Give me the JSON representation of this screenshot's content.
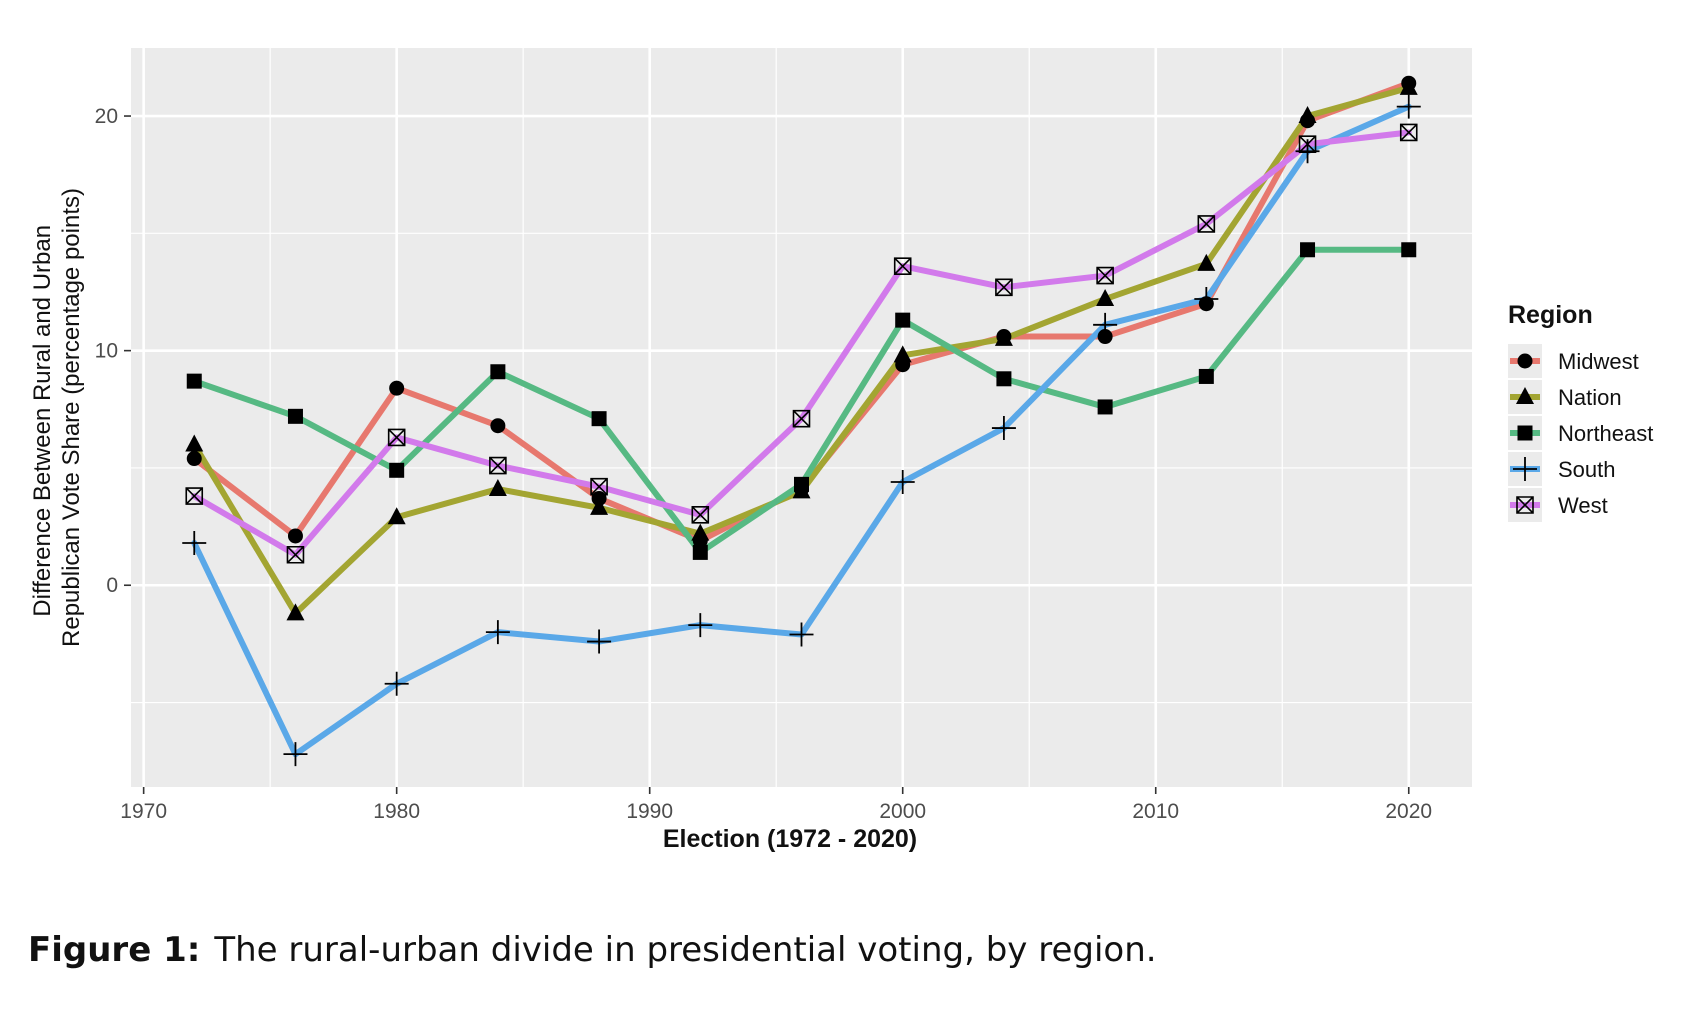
{
  "chart_data": {
    "type": "line",
    "xlabel": "Election (1972 - 2020)",
    "ylabel_lines": [
      "Difference Between Rural and Urban",
      "Republican Vote Share (percentage points)"
    ],
    "xlim": [
      1969.5,
      2022.5
    ],
    "ylim": [
      -8.6,
      22.9
    ],
    "x_ticks": [
      1970,
      1980,
      1990,
      2000,
      2010,
      2020
    ],
    "y_ticks": [
      0,
      10,
      20
    ],
    "grid": true,
    "legend_position": "right",
    "legend_title": "Region",
    "x": [
      1972,
      1976,
      1980,
      1984,
      1988,
      1992,
      1996,
      2000,
      2004,
      2008,
      2012,
      2016,
      2020
    ],
    "series": [
      {
        "name": "Midwest",
        "color": "#E7786E",
        "marker": "circle",
        "values": [
          5.4,
          2.1,
          8.4,
          6.8,
          3.7,
          1.9,
          4.1,
          9.4,
          10.6,
          10.6,
          12.0,
          19.8,
          21.4
        ]
      },
      {
        "name": "Nation",
        "color": "#A3A532",
        "marker": "triangle",
        "values": [
          6.0,
          -1.2,
          2.9,
          4.1,
          3.3,
          2.2,
          4.0,
          9.8,
          10.5,
          12.2,
          13.7,
          20.0,
          21.2
        ]
      },
      {
        "name": "Northeast",
        "color": "#56B983",
        "marker": "square",
        "values": [
          8.7,
          7.2,
          4.9,
          9.1,
          7.1,
          1.4,
          4.3,
          11.3,
          8.8,
          7.6,
          8.9,
          14.3,
          14.3
        ]
      },
      {
        "name": "South",
        "color": "#5AA8E8",
        "marker": "plus",
        "values": [
          1.8,
          -7.2,
          -4.2,
          -2.0,
          -2.4,
          -1.7,
          -2.1,
          4.4,
          6.7,
          11.1,
          12.2,
          18.5,
          20.4
        ]
      },
      {
        "name": "West",
        "color": "#D27AEB",
        "marker": "boxx",
        "values": [
          3.8,
          1.3,
          6.3,
          5.1,
          4.2,
          3.0,
          7.1,
          13.6,
          12.7,
          13.2,
          15.4,
          18.8,
          19.3
        ]
      }
    ]
  },
  "caption": {
    "label": "Figure 1:",
    "text": "The rural-urban divide in presidential voting, by region."
  }
}
